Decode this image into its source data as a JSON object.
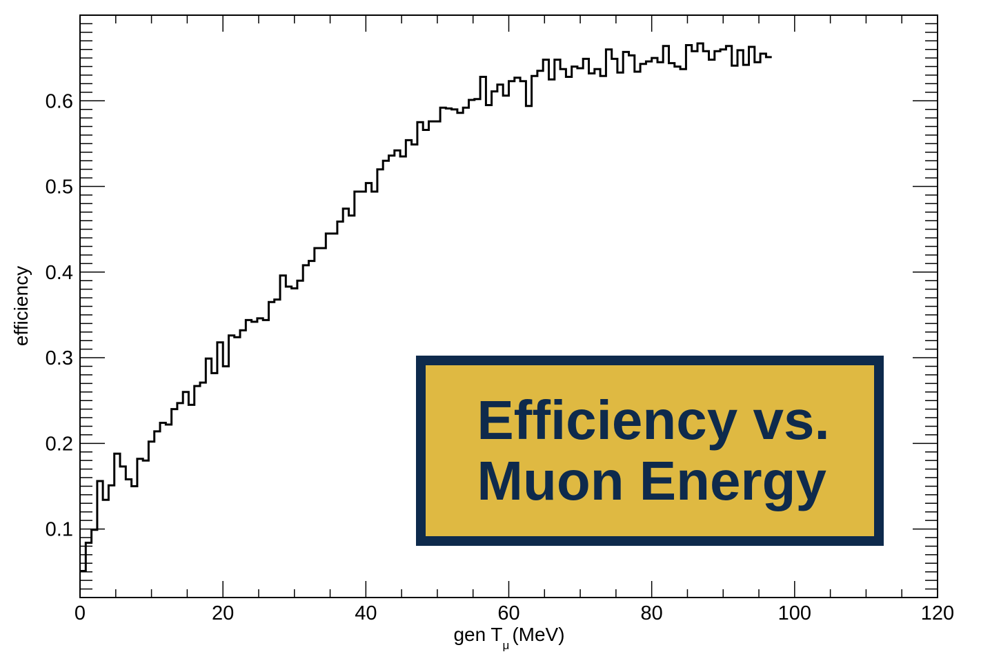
{
  "chart_data": {
    "type": "histogram-step",
    "title": "",
    "xlabel": "gen T",
    "xlabel_subscript": "μ",
    "xlabel_unit": "(MeV)",
    "ylabel": "efficiency",
    "xlim": [
      0,
      120
    ],
    "ylim": [
      0.02,
      0.7
    ],
    "x_ticks": [
      "0",
      "20",
      "40",
      "60",
      "80",
      "100",
      "120"
    ],
    "y_ticks": [
      "0.1",
      "0.2",
      "0.3",
      "0.4",
      "0.5",
      "0.6"
    ],
    "grid": false,
    "line_color": "#000000",
    "bin_width": 0.8,
    "values": [
      0.051,
      0.084,
      0.099,
      0.156,
      0.134,
      0.151,
      0.188,
      0.173,
      0.158,
      0.15,
      0.182,
      0.18,
      0.202,
      0.214,
      0.224,
      0.222,
      0.24,
      0.247,
      0.26,
      0.245,
      0.267,
      0.271,
      0.299,
      0.282,
      0.318,
      0.29,
      0.326,
      0.324,
      0.332,
      0.344,
      0.342,
      0.346,
      0.344,
      0.365,
      0.368,
      0.396,
      0.383,
      0.381,
      0.39,
      0.408,
      0.413,
      0.428,
      0.428,
      0.445,
      0.445,
      0.459,
      0.474,
      0.466,
      0.494,
      0.494,
      0.504,
      0.494,
      0.52,
      0.53,
      0.536,
      0.542,
      0.535,
      0.554,
      0.549,
      0.575,
      0.566,
      0.576,
      0.576,
      0.592,
      0.591,
      0.59,
      0.586,
      0.592,
      0.601,
      0.602,
      0.628,
      0.595,
      0.611,
      0.619,
      0.606,
      0.623,
      0.627,
      0.623,
      0.594,
      0.629,
      0.635,
      0.648,
      0.625,
      0.648,
      0.637,
      0.628,
      0.64,
      0.638,
      0.649,
      0.632,
      0.637,
      0.629,
      0.66,
      0.649,
      0.633,
      0.657,
      0.653,
      0.634,
      0.643,
      0.646,
      0.65,
      0.645,
      0.664,
      0.644,
      0.64,
      0.637,
      0.665,
      0.658,
      0.667,
      0.658,
      0.648,
      0.658,
      0.66,
      0.664,
      0.641,
      0.659,
      0.642,
      0.663,
      0.645,
      0.655,
      0.651
    ]
  },
  "banner": {
    "text": "Efficiency vs.\nMuon Energy",
    "background": "#dfb942",
    "border_color": "#0e2a4c",
    "text_color": "#0e2a4c"
  }
}
